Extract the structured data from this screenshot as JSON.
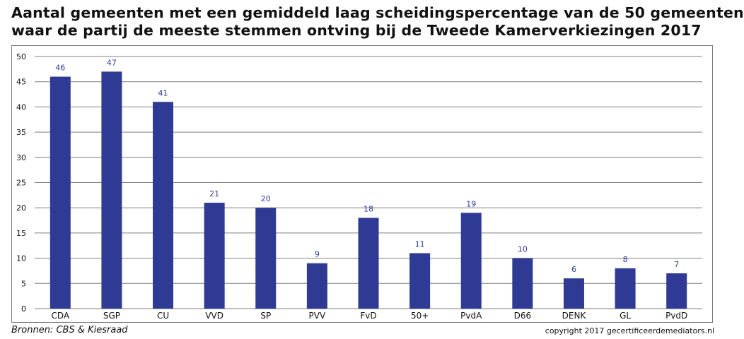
{
  "title_lines": [
    "Aantal gemeenten met een gemiddeld laag scheidingspercentage van de 50 gemeenten",
    "waar de partij de meeste stemmen ontving bij de Tweede Kamerverkiezingen 2017"
  ],
  "source": "Bronnen: CBS & Kiesraad",
  "copyright": "copyright 2017 gecertificeerdemediators.nl",
  "colors": {
    "bar": "#2E3A94",
    "label": "#2E3A94",
    "grid": "#7f7f7f",
    "axis_text": "#111111"
  },
  "chart_data": {
    "type": "bar",
    "title": "Aantal gemeenten met een gemiddeld laag scheidingspercentage van de 50 gemeenten waar de partij de meeste stemmen ontving bij de Tweede Kamerverkiezingen 2017",
    "categories": [
      "CDA",
      "SGP",
      "CU",
      "VVD",
      "SP",
      "PVV",
      "FvD",
      "50+",
      "PvdA",
      "D66",
      "DENK",
      "GL",
      "PvdD"
    ],
    "values": [
      46,
      47,
      41,
      21,
      20,
      9,
      18,
      11,
      19,
      10,
      6,
      8,
      7
    ],
    "data_labels": [
      "46",
      "47",
      "41",
      "21",
      "20",
      "9",
      "18",
      "11",
      "19",
      "10",
      "6",
      "8",
      "7"
    ],
    "y_ticks": [
      "0",
      "5",
      "10",
      "15",
      "20",
      "25",
      "30",
      "35",
      "40",
      "45",
      "50"
    ],
    "ylim": [
      0,
      50
    ],
    "xlabel": "",
    "ylabel": "",
    "grid": true,
    "legend": "none"
  }
}
